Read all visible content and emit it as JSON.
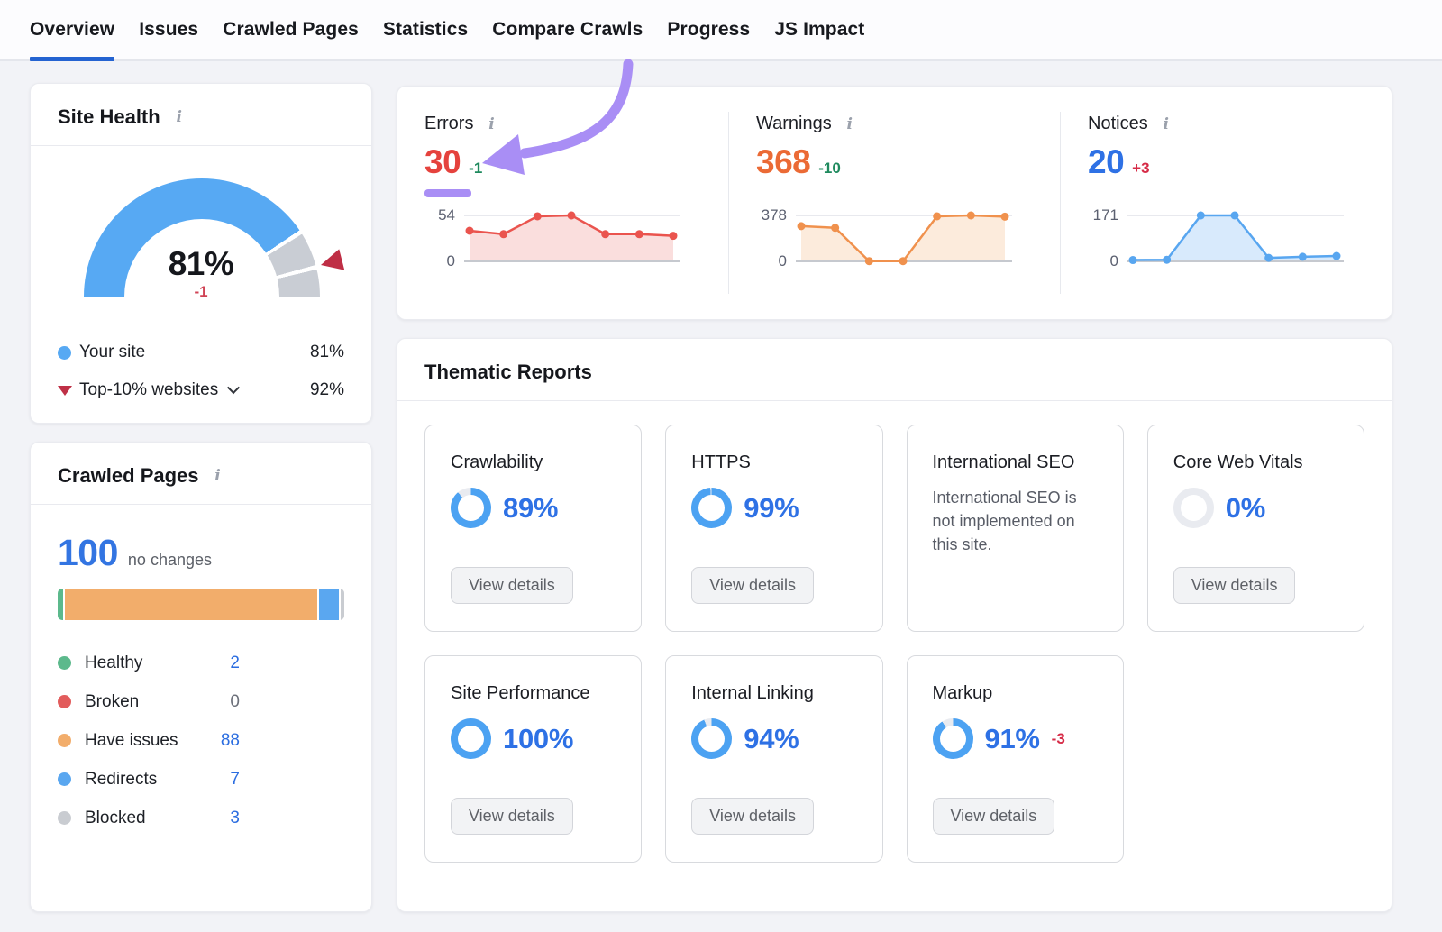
{
  "nav": {
    "tabs": [
      {
        "label": "Overview",
        "active": true
      },
      {
        "label": "Issues",
        "active": false
      },
      {
        "label": "Crawled Pages",
        "active": false
      },
      {
        "label": "Statistics",
        "active": false
      },
      {
        "label": "Compare Crawls",
        "active": false
      },
      {
        "label": "Progress",
        "active": false
      },
      {
        "label": "JS Impact",
        "active": false
      }
    ]
  },
  "site_health": {
    "title": "Site Health",
    "score": "81%",
    "delta": "-1",
    "legend": [
      {
        "label": "Your site",
        "value": "81%"
      },
      {
        "label": "Top-10% websites",
        "value": "92%"
      }
    ]
  },
  "summary": {
    "metrics": [
      {
        "label": "Errors",
        "value": "30",
        "delta": "-1",
        "ymax": "54",
        "ymin": "0",
        "value_color": "#e5423d",
        "delta_color": "#1f8a5e"
      },
      {
        "label": "Warnings",
        "value": "368",
        "delta": "-10",
        "ymax": "378",
        "ymin": "0",
        "value_color": "#eb6a35",
        "delta_color": "#1f8a5e"
      },
      {
        "label": "Notices",
        "value": "20",
        "delta": "+3",
        "ymax": "171",
        "ymin": "0",
        "value_color": "#2e71e5",
        "delta_color": "#d62b47"
      }
    ]
  },
  "crawled_pages": {
    "title": "Crawled Pages",
    "total": "100",
    "subtitle": "no changes",
    "legend": [
      {
        "label": "Healthy",
        "value": "2",
        "color": "#5cb98c",
        "link": true
      },
      {
        "label": "Broken",
        "value": "0",
        "color": "#e25c5c",
        "link": false
      },
      {
        "label": "Have issues",
        "value": "88",
        "color": "#f2ad6b",
        "link": true
      },
      {
        "label": "Redirects",
        "value": "7",
        "color": "#5aa7f0",
        "link": true
      },
      {
        "label": "Blocked",
        "value": "3",
        "color": "#c9ccd1",
        "link": true
      }
    ]
  },
  "thematic": {
    "title": "Thematic Reports",
    "cards": [
      {
        "title": "Crawlability",
        "pct": "89%",
        "donut_pct": 89,
        "button": "View details"
      },
      {
        "title": "HTTPS",
        "pct": "99%",
        "donut_pct": 99,
        "button": "View details"
      },
      {
        "title": "International SEO",
        "body": "International SEO is not implemented on this site."
      },
      {
        "title": "Core Web Vitals",
        "pct": "0%",
        "donut_pct": 0,
        "button": "View details"
      },
      {
        "title": "Site Performance",
        "pct": "100%",
        "donut_pct": 100,
        "button": "View details"
      },
      {
        "title": "Internal Linking",
        "pct": "94%",
        "donut_pct": 94,
        "button": "View details"
      },
      {
        "title": "Markup",
        "pct": "91%",
        "donut_pct": 91,
        "delta": "-3",
        "button": "View details"
      }
    ]
  },
  "colors": {
    "accent_blue": "#2e71e5",
    "sky_blue": "#57a9f3",
    "error_red": "#e5423d",
    "warning_orange": "#eb6a35",
    "good_green": "#1f8a5e",
    "bad_red": "#d62b47",
    "annotation_purple": "#a98ef5",
    "donut_blue": "#4ca2f2",
    "donut_track": "#e9ebf0"
  },
  "chart_data": [
    {
      "id": "errors_trend",
      "type": "area",
      "series": [
        {
          "name": "Errors",
          "values": [
            36,
            32,
            53,
            54,
            32,
            32,
            30
          ]
        }
      ],
      "ylim": [
        0,
        54
      ],
      "yticks": [
        54,
        0
      ],
      "grid": true,
      "line_color": "#ea544e",
      "fill_color": "#fadedd",
      "dot_color": "#ea544e"
    },
    {
      "id": "warnings_trend",
      "type": "area",
      "series": [
        {
          "name": "Warnings",
          "values": [
            290,
            276,
            2,
            2,
            371,
            378,
            368
          ]
        }
      ],
      "ylim": [
        0,
        378
      ],
      "yticks": [
        378,
        0
      ],
      "grid": true,
      "line_color": "#f0914d",
      "fill_color": "#fcebdc",
      "dot_color": "#f0914d"
    },
    {
      "id": "notices_trend",
      "type": "area",
      "series": [
        {
          "name": "Notices",
          "values": [
            5,
            6,
            171,
            171,
            13,
            17,
            20
          ]
        }
      ],
      "ylim": [
        0,
        171
      ],
      "yticks": [
        171,
        0
      ],
      "grid": true,
      "line_color": "#58a6f0",
      "fill_color": "#d8eafc",
      "dot_color": "#58a6f0"
    },
    {
      "id": "site_health_gauge",
      "type": "gauge",
      "value_pct": 81,
      "benchmark_pct": 92,
      "value_color": "#57a9f3",
      "track_color": "#c9cdd4",
      "marker_color": "#bf2e45"
    },
    {
      "id": "crawled_pages_bar",
      "type": "stacked-bar",
      "total": 100,
      "segments": [
        {
          "label": "Healthy",
          "value": 2,
          "color": "#5cb98c"
        },
        {
          "label": "Broken",
          "value": 0,
          "color": "#e25c5c"
        },
        {
          "label": "Have issues",
          "value": 88,
          "color": "#f2ad6b"
        },
        {
          "label": "Redirects",
          "value": 7,
          "color": "#5aa7f0"
        },
        {
          "label": "Blocked",
          "value": 3,
          "color": "#c9ccd1"
        }
      ]
    },
    {
      "id": "thematic_donuts",
      "type": "pie",
      "categories": [
        "Crawlability",
        "HTTPS",
        "Core Web Vitals",
        "Site Performance",
        "Internal Linking",
        "Markup"
      ],
      "values": [
        89,
        99,
        0,
        100,
        94,
        91
      ]
    }
  ]
}
